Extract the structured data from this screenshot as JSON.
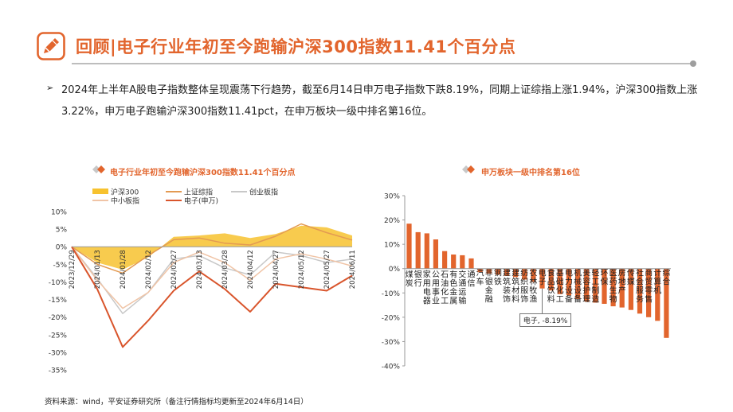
{
  "header": {
    "title": "回顾|电子行业年初至今跑输沪深300指数11.41个百分点",
    "icon": "pencil-icon",
    "accent_color": "#e2652d"
  },
  "bullet_symbol": "➢",
  "summary": "2024年上半年A股电子指数整体呈现震荡下行趋势，截至6月14日申万电子指数下跌8.19%，同期上证综指上涨1.94%，沪深300指数上涨3.22%，申万电子跑输沪深300指数11.41pct，在申万板块一级中排名第16位。",
  "footer": "资料来源：wind，平安证券研究所（备注行情指标均更新至2024年6月14日）",
  "chart_data": [
    {
      "type": "line",
      "title": "电子行业年初至今跑输沪深300指数11.41个百分点",
      "ylim": [
        -35,
        10
      ],
      "yticks": [
        10,
        5,
        0,
        -5,
        -10,
        -15,
        -20,
        -25,
        -30,
        -35
      ],
      "y_format": "percent",
      "grid": false,
      "legend_position": "top",
      "x": [
        "2023/12/29",
        "2024/01/13",
        "2024/01/28",
        "2024/02/12",
        "2024/02/27",
        "2024/03/13",
        "2024/03/28",
        "2024/04/12",
        "2024/04/27",
        "2024/05/12",
        "2024/05/27",
        "2024/06/11"
      ],
      "series": [
        {
          "name": "沪深300",
          "kind": "area",
          "color": "#f7c22f",
          "values": [
            0,
            -4.5,
            -6.5,
            -3.0,
            2.8,
            3.2,
            3.8,
            2.5,
            3.6,
            6.0,
            5.5,
            3.2
          ]
        },
        {
          "name": "上证综指",
          "kind": "line",
          "color": "#e39a52",
          "values": [
            0,
            -5.0,
            -7.5,
            -2.5,
            2.0,
            2.5,
            1.0,
            0.5,
            3.0,
            6.5,
            4.0,
            1.9
          ]
        },
        {
          "name": "创业板指",
          "kind": "line",
          "color": "#c8c8c8",
          "values": [
            0,
            -9.0,
            -19.0,
            -13.0,
            -3.5,
            -2.5,
            -6.0,
            -8.0,
            -1.5,
            -2.5,
            -4.5,
            -3.5
          ]
        },
        {
          "name": "中小板指",
          "kind": "line",
          "color": "#f0c4a6",
          "values": [
            0,
            -9.5,
            -17.5,
            -13.0,
            -4.5,
            -1.5,
            -4.5,
            -9.5,
            -3.5,
            -2.0,
            -3.5,
            -5.5
          ]
        },
        {
          "name": "电子(申万)",
          "kind": "line",
          "color": "#d9552c",
          "values": [
            0,
            -12.0,
            -28.5,
            -21.0,
            -12.5,
            -7.0,
            -12.0,
            -18.5,
            -10.5,
            -11.5,
            -12.5,
            -8.2
          ]
        }
      ]
    },
    {
      "type": "bar",
      "title": "申万板块一级中排名第16位",
      "color": "#e2652d",
      "ylim": [
        -40,
        30
      ],
      "yticks": [
        30,
        20,
        10,
        0,
        -10,
        -20,
        -30,
        -40
      ],
      "y_format": "percent",
      "grid": false,
      "categories": [
        {
          "label": "煤炭",
          "value": 18.5
        },
        {
          "label": "银行",
          "value": 15.0
        },
        {
          "label": "家用电器",
          "value": 14.5
        },
        {
          "label": "公用事业",
          "value": 12.0
        },
        {
          "label": "石油化工",
          "value": 7.2
        },
        {
          "label": "有色金属",
          "value": 5.8
        },
        {
          "label": "交通运输",
          "value": 5.5
        },
        {
          "label": "通信",
          "value": 4.2
        },
        {
          "label": "汽车",
          "value": -1.5
        },
        {
          "label": "非银金融",
          "value": -2.0
        },
        {
          "label": "钢铁",
          "value": -2.5
        },
        {
          "label": "建筑装饰",
          "value": -3.0
        },
        {
          "label": "建筑材料",
          "value": -3.5
        },
        {
          "label": "纺织服饰",
          "value": -4.5
        },
        {
          "label": "农林牧渔",
          "value": -5.5
        },
        {
          "label": "电子",
          "value": -8.19
        },
        {
          "label": "食品饮料",
          "value": -9.0
        },
        {
          "label": "基础化工",
          "value": -10.5
        },
        {
          "label": "电力设备",
          "value": -11.0
        },
        {
          "label": "机械设备",
          "value": -12.5
        },
        {
          "label": "美容护理",
          "value": -13.5
        },
        {
          "label": "轻工制造",
          "value": -14.0
        },
        {
          "label": "环保",
          "value": -14.5
        },
        {
          "label": "医药生物",
          "value": -15.5
        },
        {
          "label": "房地产",
          "value": -16.0
        },
        {
          "label": "传媒",
          "value": -17.0
        },
        {
          "label": "社会服务",
          "value": -18.5
        },
        {
          "label": "商贸零售",
          "value": -20.0
        },
        {
          "label": "计算机",
          "value": -21.5
        },
        {
          "label": "综合",
          "value": -28.5
        }
      ],
      "annotation": {
        "label": "电子, -8.19%",
        "category": "电子"
      }
    }
  ]
}
